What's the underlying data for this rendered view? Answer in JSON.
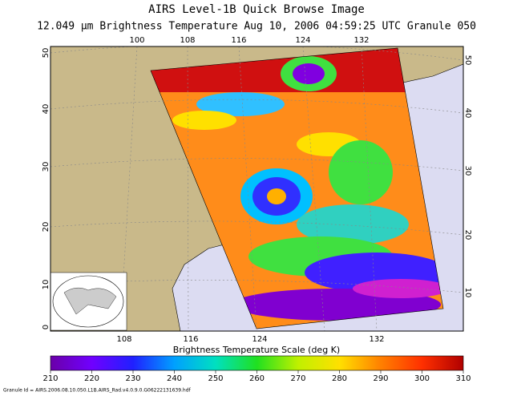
{
  "header": {
    "title": "AIRS Level-1B Quick Browse Image",
    "subtitle": "12.049 μm Brightness Temperature   Aug 10, 2006 04:59:25 UTC   Granule 050"
  },
  "map": {
    "top_lon_labels": [
      "100",
      "108",
      "116",
      "124",
      "132"
    ],
    "bottom_lon_labels": [
      "108",
      "116",
      "124",
      "132"
    ],
    "left_lat_labels": [
      "50",
      "40",
      "30",
      "20",
      "10",
      "0"
    ],
    "right_lat_labels": [
      "50",
      "40",
      "30",
      "20",
      "10"
    ]
  },
  "colorbar": {
    "label": "Brightness Temperature Scale (deg K)",
    "ticks": [
      210,
      220,
      230,
      240,
      250,
      260,
      270,
      280,
      290,
      300,
      310
    ]
  },
  "footer": "Granule Id = AIRS.2006.08.10.050.L1B.AIRS_Rad.v4.0.9.0.G06222131639.hdf"
}
